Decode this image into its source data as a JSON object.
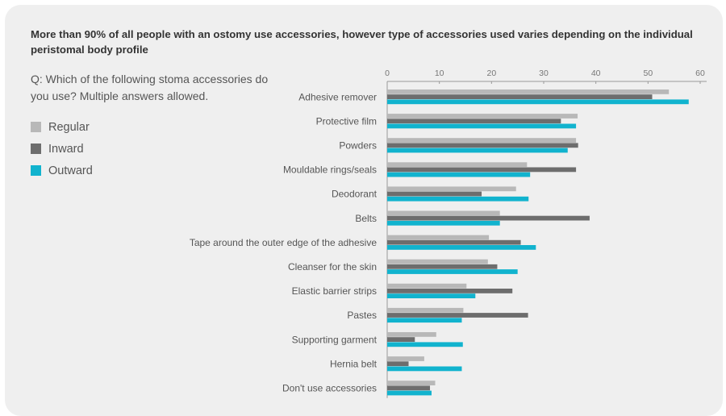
{
  "chart_data": {
    "type": "bar",
    "orientation": "horizontal",
    "title": "More than 90% of all people with an ostomy use accessories, however type of accessories used varies depending on the individual peristomal body profile",
    "question": "Q: Which of the following stoma accessories do you use? Multiple answers allowed.",
    "categories": [
      "Adhesive remover",
      "Protective film",
      "Powders",
      "Mouldable rings/seals",
      "Deodorant",
      "Belts",
      "Tape around the outer edge of the adhesive",
      "Cleanser for the skin",
      "Elastic barrier strips",
      "Pastes",
      "Supporting garment",
      "Hernia belt",
      "Don't use accessories"
    ],
    "series": [
      {
        "name": "Regular",
        "color": "#b8b8b8",
        "values": [
          54,
          36.5,
          36.2,
          26.8,
          24.7,
          21.6,
          19.5,
          19.3,
          15.2,
          14.6,
          9.4,
          7.1,
          9.2
        ]
      },
      {
        "name": "Inward",
        "color": "#6d6d6d",
        "values": [
          50.8,
          33.3,
          36.6,
          36.2,
          18.1,
          38.8,
          25.6,
          21.1,
          24,
          27,
          5.3,
          4.1,
          8.2
        ]
      },
      {
        "name": "Outward",
        "color": "#11b3ce",
        "values": [
          57.8,
          36.2,
          34.6,
          27.4,
          27.1,
          21.6,
          28.5,
          25,
          16.9,
          14.3,
          14.5,
          14.3,
          8.5
        ]
      }
    ],
    "xlim": [
      0,
      60
    ],
    "xticks": [
      0,
      10,
      20,
      30,
      40,
      50,
      60
    ],
    "xlabel": "",
    "ylabel": "",
    "legend_position": "left",
    "grid": false
  }
}
